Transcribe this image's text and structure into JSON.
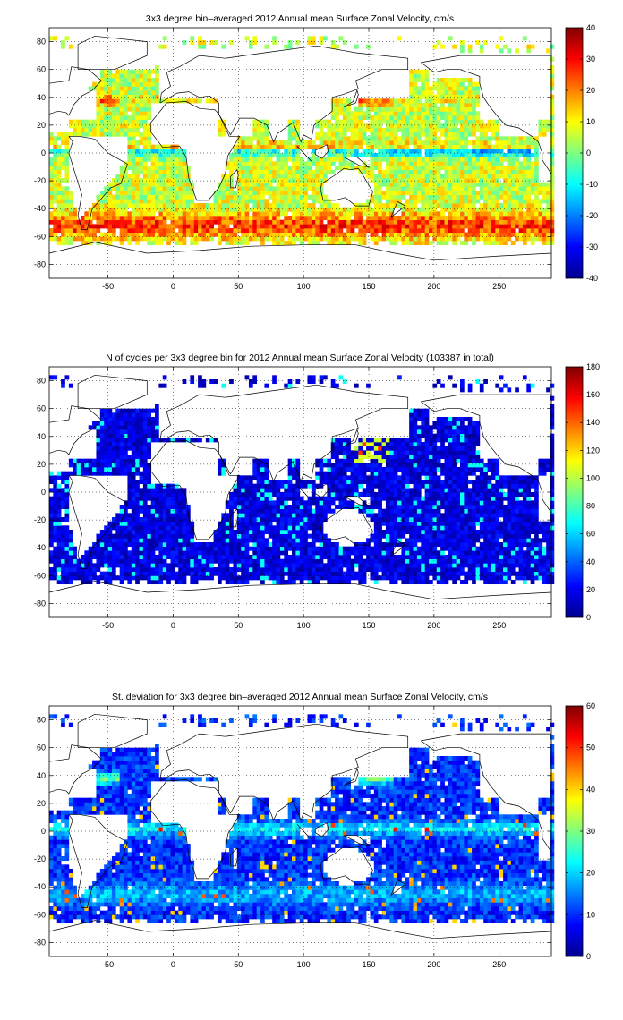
{
  "chart_data": [
    {
      "type": "heatmap",
      "title": "3x3 degree bin–averaged 2012 Annual mean Surface Zonal Velocity, cm/s",
      "xlim": [
        -95,
        290
      ],
      "ylim": [
        -90,
        90
      ],
      "x_ticks": [
        -50,
        0,
        50,
        100,
        150,
        200,
        250
      ],
      "y_ticks": [
        80,
        60,
        40,
        20,
        0,
        -20,
        -40,
        -60,
        -80
      ],
      "x_tick_labels": [
        "-50",
        "0",
        "50",
        "100",
        "150",
        "200",
        "250"
      ],
      "y_tick_labels": [
        "80",
        "60",
        "40",
        "20",
        "0",
        "-20",
        "-40",
        "-60",
        "-80"
      ],
      "grid": "dotted",
      "colormap": "jet",
      "colorbar": {
        "range": [
          -40,
          40
        ],
        "ticks": [
          40,
          30,
          20,
          10,
          0,
          -10,
          -20,
          -30,
          -40
        ],
        "tick_labels": [
          "40",
          "30",
          "20",
          "10",
          "0",
          "-10",
          "-20",
          "-30",
          "-40"
        ]
      },
      "bin_size_deg": 3,
      "field": "zonal_velocity"
    },
    {
      "type": "heatmap",
      "title": "N of cycles per 3x3 degree bin for 2012 Annual mean Surface Zonal Velocity (103387 in total)",
      "xlim": [
        -95,
        290
      ],
      "ylim": [
        -90,
        90
      ],
      "x_ticks": [
        -50,
        0,
        50,
        100,
        150,
        200,
        250
      ],
      "y_ticks": [
        80,
        60,
        40,
        20,
        0,
        -20,
        -40,
        -60,
        -80
      ],
      "x_tick_labels": [
        "-50",
        "0",
        "50",
        "100",
        "150",
        "200",
        "250"
      ],
      "y_tick_labels": [
        "80",
        "60",
        "40",
        "20",
        "0",
        "-20",
        "-40",
        "-60",
        "-80"
      ],
      "grid": "dotted",
      "colormap": "jet",
      "colorbar": {
        "range": [
          0,
          180
        ],
        "ticks": [
          180,
          160,
          140,
          120,
          100,
          80,
          60,
          40,
          20,
          0
        ],
        "tick_labels": [
          "180",
          "160",
          "140",
          "120",
          "100",
          "80",
          "60",
          "40",
          "20",
          "0"
        ]
      },
      "bin_size_deg": 3,
      "field": "cycle_count"
    },
    {
      "type": "heatmap",
      "title": "St. deviation for 3x3 degree bin–averaged 2012 Annual mean Surface Zonal Velocity, cm/s",
      "xlim": [
        -95,
        290
      ],
      "ylim": [
        -90,
        90
      ],
      "x_ticks": [
        -50,
        0,
        50,
        100,
        150,
        200,
        250
      ],
      "y_ticks": [
        80,
        60,
        40,
        20,
        0,
        -20,
        -40,
        -60,
        -80
      ],
      "x_tick_labels": [
        "-50",
        "0",
        "50",
        "100",
        "150",
        "200",
        "250"
      ],
      "y_tick_labels": [
        "80",
        "60",
        "40",
        "20",
        "0",
        "-20",
        "-40",
        "-60",
        "-80"
      ],
      "grid": "dotted",
      "colormap": "jet",
      "colorbar": {
        "range": [
          0,
          60
        ],
        "ticks": [
          60,
          50,
          40,
          30,
          20,
          10,
          0
        ],
        "tick_labels": [
          "60",
          "50",
          "40",
          "30",
          "20",
          "10",
          "0"
        ]
      },
      "bin_size_deg": 3,
      "field": "std_dev"
    }
  ]
}
